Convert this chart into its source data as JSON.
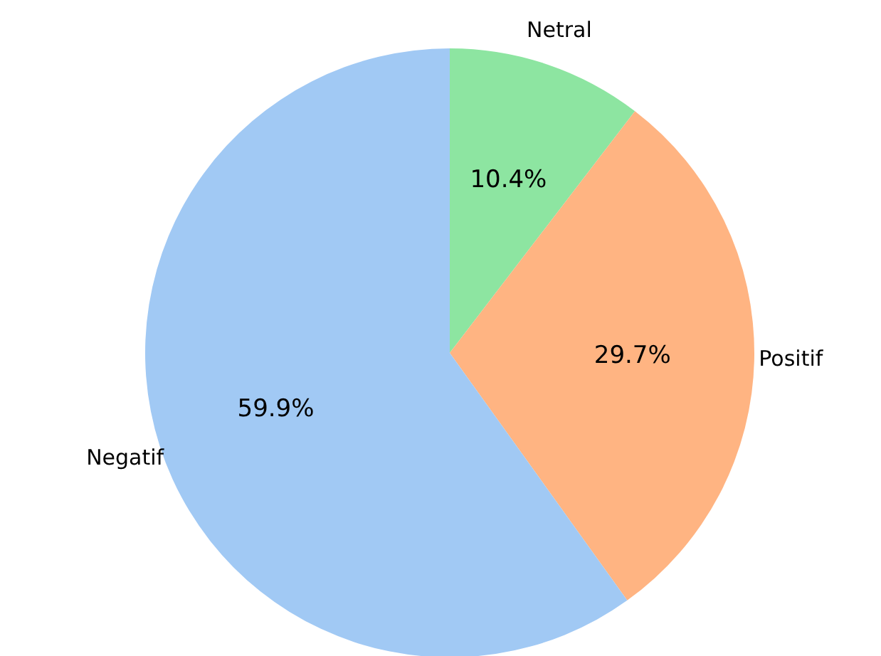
{
  "chart_data": {
    "type": "pie",
    "categories": [
      "Netral",
      "Positif",
      "Negatif"
    ],
    "values": [
      10.4,
      29.7,
      59.9
    ],
    "value_labels": [
      "10.4%",
      "29.7%",
      "59.9%"
    ],
    "colors": [
      "#8de5a1",
      "#ffb482",
      "#a1c9f4"
    ],
    "legend": false
  }
}
